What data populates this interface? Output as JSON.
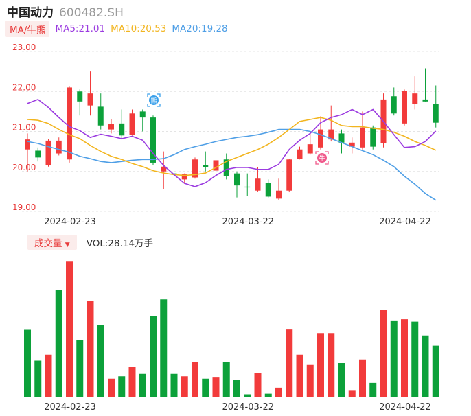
{
  "header": {
    "name": "中国动力",
    "code": "600482.SH"
  },
  "ma_legend": {
    "tag": "MA/牛熊",
    "ma5": "MA5:21.01",
    "ma10": "MA10:20.53",
    "ma20": "MA20:19.28"
  },
  "volume_legend": {
    "tag": "成交量",
    "text": "VOL:28.14万手"
  },
  "markers": {
    "bear": "熊",
    "bull": "牛"
  },
  "colors": {
    "up": "#f23b3b",
    "down": "#0ca13a",
    "ma5": "#9b3be0",
    "ma10": "#f2b51f",
    "ma20": "#4f9fe6",
    "grid": "#e4e4e4",
    "axis_label": "#e83a3a"
  },
  "chart_data": [
    {
      "type": "candlestick",
      "y_ticks": [
        "23.00",
        "22.00",
        "21.00",
        "20.00",
        "19.00"
      ],
      "ylim": [
        19.0,
        23.0
      ],
      "x_ticks": [
        {
          "index": 4,
          "label": "2024-02-23"
        },
        {
          "index": 21,
          "label": "2024-03-22"
        },
        {
          "index": 36,
          "label": "2024-04-22"
        }
      ],
      "candles": [
        {
          "o": 20.55,
          "c": 20.8,
          "h": 20.95,
          "l": 20.0
        },
        {
          "o": 20.52,
          "c": 20.35,
          "h": 20.6,
          "l": 20.25
        },
        {
          "o": 20.15,
          "c": 20.77,
          "h": 20.82,
          "l": 20.12
        },
        {
          "o": 20.45,
          "c": 20.77,
          "h": 20.85,
          "l": 20.4
        },
        {
          "o": 20.3,
          "c": 22.1,
          "h": 22.12,
          "l": 20.22
        },
        {
          "o": 22.0,
          "c": 21.75,
          "h": 22.05,
          "l": 21.4
        },
        {
          "o": 21.65,
          "c": 21.95,
          "h": 22.5,
          "l": 21.4
        },
        {
          "o": 21.62,
          "c": 21.15,
          "h": 21.95,
          "l": 21.05
        },
        {
          "o": 21.05,
          "c": 21.18,
          "h": 21.3,
          "l": 20.95
        },
        {
          "o": 21.2,
          "c": 20.9,
          "h": 21.55,
          "l": 20.8
        },
        {
          "o": 20.92,
          "c": 21.45,
          "h": 21.55,
          "l": 20.9
        },
        {
          "o": 21.5,
          "c": 21.35,
          "h": 21.55,
          "l": 21.0
        },
        {
          "o": 21.35,
          "c": 20.22,
          "h": 21.4,
          "l": 20.15
        },
        {
          "o": 20.0,
          "c": 20.12,
          "h": 20.5,
          "l": 19.55
        },
        {
          "o": 19.95,
          "c": 19.93,
          "h": 20.35,
          "l": 19.85
        },
        {
          "o": 19.8,
          "c": 19.93,
          "h": 19.95,
          "l": 19.7
        },
        {
          "o": 19.85,
          "c": 20.3,
          "h": 20.35,
          "l": 19.82
        },
        {
          "o": 20.15,
          "c": 20.1,
          "h": 20.5,
          "l": 20.0
        },
        {
          "o": 20.02,
          "c": 20.28,
          "h": 20.4,
          "l": 19.95
        },
        {
          "o": 20.3,
          "c": 19.88,
          "h": 20.45,
          "l": 19.8
        },
        {
          "o": 19.95,
          "c": 19.65,
          "h": 20.0,
          "l": 19.35
        },
        {
          "o": 19.62,
          "c": 19.6,
          "h": 19.95,
          "l": 19.38
        },
        {
          "o": 19.52,
          "c": 19.82,
          "h": 20.1,
          "l": 19.5
        },
        {
          "o": 19.72,
          "c": 19.37,
          "h": 19.8,
          "l": 19.35
        },
        {
          "o": 19.32,
          "c": 19.52,
          "h": 19.82,
          "l": 19.28
        },
        {
          "o": 19.52,
          "c": 20.3,
          "h": 20.32,
          "l": 19.48
        },
        {
          "o": 20.32,
          "c": 20.55,
          "h": 20.62,
          "l": 20.3
        },
        {
          "o": 20.45,
          "c": 20.68,
          "h": 20.98,
          "l": 20.42
        },
        {
          "o": 20.6,
          "c": 21.05,
          "h": 21.38,
          "l": 20.55
        },
        {
          "o": 20.8,
          "c": 21.05,
          "h": 21.65,
          "l": 20.75
        },
        {
          "o": 20.95,
          "c": 20.72,
          "h": 21.05,
          "l": 20.45
        },
        {
          "o": 20.62,
          "c": 20.72,
          "h": 20.85,
          "l": 20.45
        },
        {
          "o": 20.6,
          "c": 21.1,
          "h": 21.5,
          "l": 20.55
        },
        {
          "o": 21.1,
          "c": 20.62,
          "h": 21.15,
          "l": 20.55
        },
        {
          "o": 20.7,
          "c": 21.8,
          "h": 21.95,
          "l": 20.6
        },
        {
          "o": 21.88,
          "c": 21.45,
          "h": 22.1,
          "l": 21.4
        },
        {
          "o": 21.2,
          "c": 22.02,
          "h": 22.05,
          "l": 21.15
        },
        {
          "o": 21.68,
          "c": 21.95,
          "h": 22.38,
          "l": 21.55
        },
        {
          "o": 21.8,
          "c": 21.75,
          "h": 22.58,
          "l": 21.75
        },
        {
          "o": 21.68,
          "c": 21.22,
          "h": 22.15,
          "l": 21.1
        }
      ],
      "ma5": [
        21.7,
        21.8,
        21.6,
        21.35,
        21.12,
        21.02,
        20.85,
        20.93,
        20.88,
        20.82,
        20.88,
        20.78,
        20.45,
        20.15,
        19.92,
        19.7,
        19.62,
        19.72,
        19.9,
        20.05,
        20.1,
        20.1,
        20.05,
        20.05,
        20.18,
        20.55,
        20.78,
        20.95,
        21.22,
        21.35,
        21.42,
        21.55,
        21.42,
        21.55,
        21.25,
        20.92,
        20.6,
        20.62,
        20.75,
        21.01
      ],
      "ma10": [
        21.3,
        21.28,
        21.2,
        21.05,
        20.92,
        20.82,
        20.65,
        20.5,
        20.38,
        20.3,
        20.2,
        20.12,
        20.02,
        19.96,
        19.92,
        19.9,
        19.92,
        19.96,
        20.1,
        20.25,
        20.35,
        20.45,
        20.55,
        20.68,
        20.85,
        21.05,
        21.25,
        21.3,
        21.35,
        21.28,
        21.15,
        21.12,
        21.12,
        21.08,
        21.05,
        20.98,
        20.88,
        20.75,
        20.65,
        20.53
      ],
      "ma20": [
        20.75,
        20.7,
        20.62,
        20.55,
        20.48,
        20.38,
        20.32,
        20.25,
        20.22,
        20.25,
        20.28,
        20.3,
        20.3,
        20.32,
        20.42,
        20.55,
        20.62,
        20.68,
        20.75,
        20.8,
        20.85,
        20.88,
        20.92,
        20.98,
        21.05,
        21.05,
        21.05,
        21.0,
        20.92,
        20.82,
        20.72,
        20.62,
        20.52,
        20.42,
        20.28,
        20.12,
        19.88,
        19.68,
        19.45,
        19.28
      ]
    },
    {
      "type": "bar",
      "series_label": "成交量",
      "x_ticks": [
        {
          "index": 4,
          "label": "2024-02-23"
        },
        {
          "index": 21,
          "label": "2024-03-22"
        },
        {
          "index": 36,
          "label": "2024-04-22"
        }
      ],
      "ylim": [
        0,
        60
      ],
      "values": [
        28.14,
        15,
        17.5,
        44.5,
        56.5,
        23.5,
        40,
        30,
        7.5,
        8.5,
        12.5,
        9.5,
        33.5,
        40.5,
        9.5,
        8.5,
        14.5,
        7.5,
        8.25,
        14.5,
        7,
        1,
        9.75,
        1.25,
        3.75,
        28.25,
        17.5,
        13.5,
        26.5,
        26.5,
        14,
        2.75,
        15.5,
        5.75,
        36.25,
        31.75,
        32.25,
        31.25,
        25.5,
        21.25
      ],
      "directions": [
        "down",
        "down",
        "up",
        "down",
        "up",
        "down",
        "up",
        "down",
        "up",
        "down",
        "up",
        "down",
        "down",
        "down",
        "down",
        "up",
        "up",
        "down",
        "up",
        "down",
        "down",
        "down",
        "up",
        "down",
        "up",
        "up",
        "up",
        "up",
        "up",
        "up",
        "down",
        "up",
        "up",
        "down",
        "up",
        "down",
        "up",
        "down",
        "down",
        "down"
      ]
    }
  ]
}
